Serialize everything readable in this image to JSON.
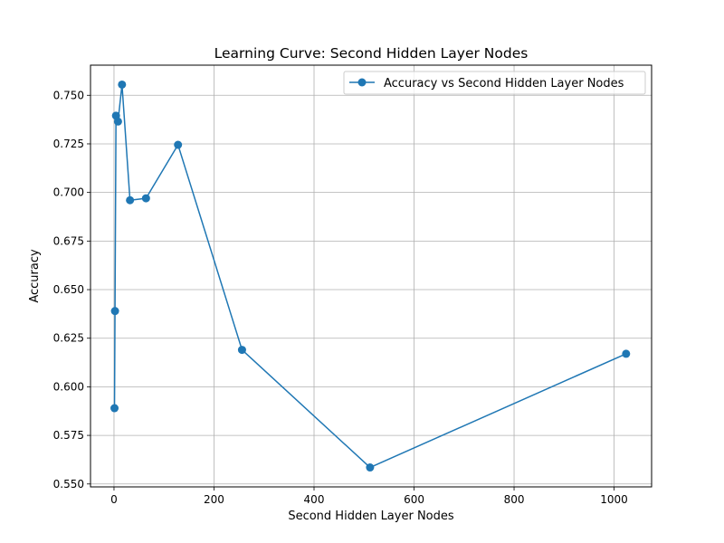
{
  "chart_data": {
    "type": "line",
    "title": "Learning Curve: Second Hidden Layer Nodes",
    "xlabel": "Second Hidden Layer Nodes",
    "ylabel": "Accuracy",
    "xlim": [
      -47,
      1075
    ],
    "ylim": [
      0.5485,
      0.7655
    ],
    "xticks": [
      0,
      200,
      400,
      600,
      800,
      1000
    ],
    "xtick_labels": [
      "0",
      "200",
      "400",
      "600",
      "800",
      "1000"
    ],
    "yticks": [
      0.55,
      0.575,
      0.6,
      0.625,
      0.65,
      0.675,
      0.7,
      0.725,
      0.75
    ],
    "ytick_labels": [
      "0.550",
      "0.575",
      "0.600",
      "0.625",
      "0.650",
      "0.675",
      "0.700",
      "0.725",
      "0.750"
    ],
    "grid": true,
    "legend_position": "top-right",
    "series": [
      {
        "name": "Accuracy vs Second Hidden Layer Nodes",
        "color": "#1f77b4",
        "marker": "circle",
        "x": [
          1,
          2,
          4,
          8,
          16,
          32,
          64,
          128,
          256,
          512,
          1024
        ],
        "y": [
          0.589,
          0.639,
          0.7395,
          0.7365,
          0.7555,
          0.696,
          0.697,
          0.7245,
          0.619,
          0.5585,
          0.617
        ]
      }
    ]
  }
}
